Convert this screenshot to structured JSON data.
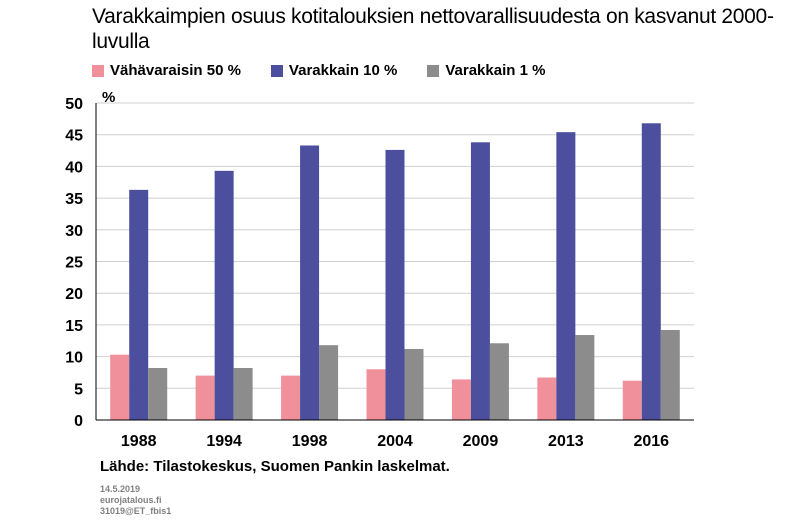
{
  "chart_data": {
    "type": "bar",
    "title": "Varakkaimpien osuus kotitalouksien nettovarallisuudesta on kasvanut 2000-luvulla",
    "ylabel": "%",
    "ylim": [
      0,
      50
    ],
    "yticks": [
      0,
      5,
      10,
      15,
      20,
      25,
      30,
      35,
      40,
      45,
      50
    ],
    "grid": true,
    "legend_position": "top",
    "categories": [
      "1988",
      "1994",
      "1998",
      "2004",
      "2009",
      "2013",
      "2016"
    ],
    "series": [
      {
        "name": "Vähävaraisin 50 %",
        "color": "#f0909a",
        "values": [
          10.3,
          7.0,
          7.0,
          8.0,
          6.4,
          6.7,
          6.2
        ]
      },
      {
        "name": "Varakkain 10 %",
        "color": "#4b4f9e",
        "values": [
          36.3,
          39.3,
          43.3,
          42.6,
          43.8,
          45.4,
          46.8
        ]
      },
      {
        "name": "Varakkain 1 %",
        "color": "#8c8c8c",
        "values": [
          8.2,
          8.2,
          11.8,
          11.2,
          12.1,
          13.4,
          14.2
        ]
      }
    ]
  },
  "footer": {
    "source": "Lähde: Tilastokeskus, Suomen Pankin laskelmat.",
    "date": "14.5.2019",
    "site": "euroja­talous.fi",
    "code": "31019@ET_fbis1"
  }
}
